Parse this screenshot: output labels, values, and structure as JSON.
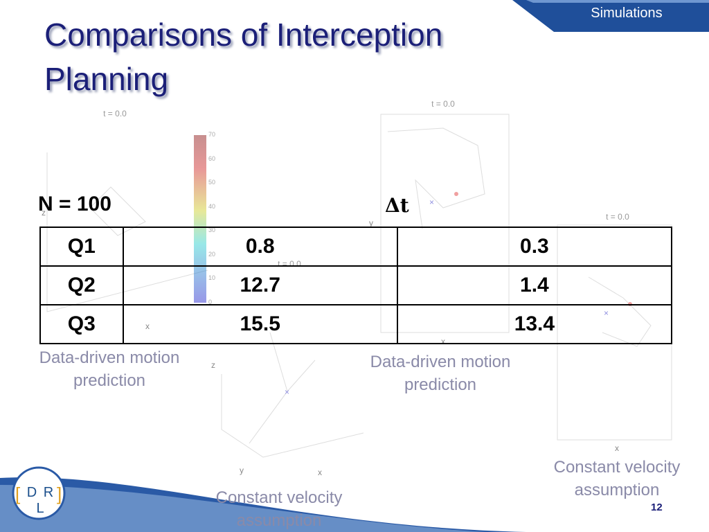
{
  "header": {
    "section": "Simulations",
    "title": "Comparisons of Interception Planning"
  },
  "plots": [
    {
      "time_label": "t = 0.0",
      "caption": "Data-driven motion prediction",
      "axis_labels": [
        "x",
        "z"
      ]
    },
    {
      "time_label": "t = 0.0",
      "caption": "Constant velocity assumption",
      "axis_labels": [
        "z",
        "y",
        "x"
      ]
    },
    {
      "time_label": "t = 0.0",
      "caption": "Data-driven motion prediction",
      "axis_labels": [
        "y",
        "x"
      ]
    },
    {
      "time_label": "t = 0.0",
      "caption": "Constant velocity assumption",
      "axis_labels": [
        "x"
      ]
    }
  ],
  "colorbar": {
    "ticks": [
      70,
      60,
      50,
      40,
      30,
      20,
      10,
      0
    ]
  },
  "table": {
    "caption_left": "N = 100",
    "caption_right": "Δt",
    "rows": [
      [
        "Q1",
        "0.8",
        "0.3"
      ],
      [
        "Q2",
        "12.7",
        "1.4"
      ],
      [
        "Q3",
        "15.5",
        "13.4"
      ]
    ]
  },
  "footer": {
    "logo": "D R L",
    "page": "12"
  }
}
